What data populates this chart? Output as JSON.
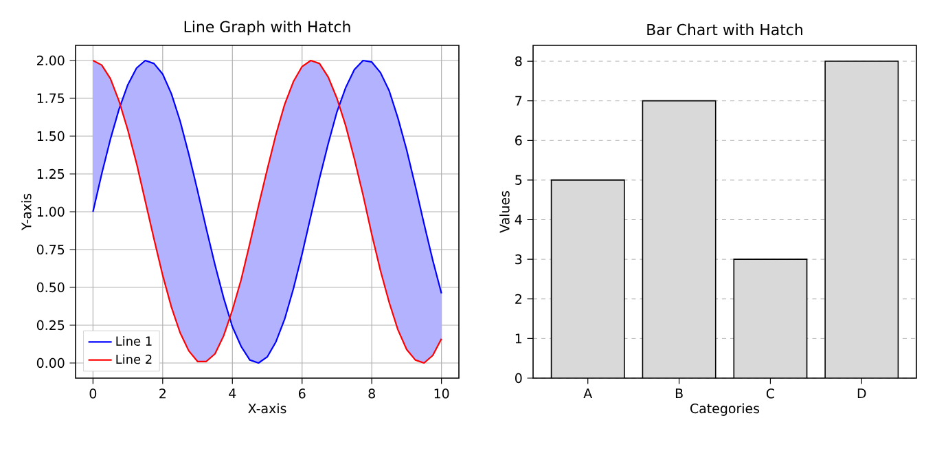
{
  "chart_data": [
    {
      "type": "line",
      "title": "Line Graph with Hatch",
      "xlabel": "X-axis",
      "ylabel": "Y-axis",
      "x": [
        0,
        0.25,
        0.5,
        0.75,
        1,
        1.25,
        1.5,
        1.75,
        2,
        2.25,
        2.5,
        2.75,
        3,
        3.25,
        3.5,
        3.75,
        4,
        4.25,
        4.5,
        4.75,
        5,
        5.25,
        5.5,
        5.75,
        6,
        6.25,
        6.5,
        6.75,
        7,
        7.25,
        7.5,
        7.75,
        8,
        8.25,
        8.5,
        8.75,
        9,
        9.25,
        9.5,
        9.75,
        10
      ],
      "series": [
        {
          "name": "Line 1",
          "color": "#0000ff",
          "values": [
            1.0,
            1.25,
            1.48,
            1.68,
            1.84,
            1.95,
            2.0,
            1.98,
            1.91,
            1.78,
            1.6,
            1.38,
            1.14,
            0.89,
            0.65,
            0.43,
            0.24,
            0.11,
            0.02,
            0.0,
            0.04,
            0.14,
            0.29,
            0.49,
            0.72,
            0.9701,
            1.22,
            1.45,
            1.66,
            1.82,
            1.94,
            2.0,
            1.99,
            1.92,
            1.8,
            1.62,
            1.41,
            1.17,
            0.92,
            0.68,
            0.46
          ],
          "lower": [
            2.0,
            1.97,
            1.88,
            1.73,
            1.54,
            1.32,
            1.07,
            0.82,
            0.58,
            0.37,
            0.2,
            0.08,
            0.01,
            0.01,
            0.06,
            0.18,
            0.35,
            0.55,
            0.79,
            1.04,
            1.28,
            1.51,
            1.71,
            1.86,
            1.96,
            2.0,
            1.98,
            1.89,
            1.75,
            1.57,
            1.35,
            1.11,
            0.85,
            0.61,
            0.4,
            0.22,
            0.09,
            0.02,
            0.0,
            0.05,
            0.16
          ],
          "upper": [
            1.0,
            1.25,
            1.48,
            1.68,
            1.84,
            1.95,
            2.0,
            1.98,
            1.91,
            1.78,
            1.6,
            1.38,
            1.14,
            0.89,
            0.65,
            0.43,
            0.24,
            0.11,
            0.02,
            0.0,
            0.04,
            0.14,
            0.29,
            0.49,
            0.72,
            0.9701,
            1.22,
            1.45,
            1.66,
            1.82,
            1.94,
            2.0,
            1.99,
            1.92,
            1.8,
            1.62,
            1.41,
            1.17,
            0.92,
            0.68,
            0.46
          ]
        },
        {
          "name": "Line 2",
          "color": "#ff0000",
          "values": [
            2.0,
            1.97,
            1.88,
            1.73,
            1.54,
            1.32,
            1.07,
            0.82,
            0.58,
            0.37,
            0.2,
            0.08,
            0.01,
            0.01,
            0.06,
            0.18,
            0.35,
            0.55,
            0.79,
            1.04,
            1.28,
            1.51,
            1.71,
            1.86,
            1.96,
            2.0,
            1.98,
            1.89,
            1.75,
            1.57,
            1.35,
            1.11,
            0.85,
            0.61,
            0.4,
            0.22,
            0.09,
            0.02,
            0.0,
            0.05,
            0.16
          ]
        }
      ],
      "xlim": [
        -0.5,
        10.5
      ],
      "ylim": [
        -0.1,
        2.1
      ],
      "xticks": [
        0,
        2,
        4,
        6,
        8,
        10
      ],
      "yticks": [
        {
          "value": 0,
          "label": "0.00"
        },
        {
          "value": 0.25,
          "label": "0.25"
        },
        {
          "value": 0.5,
          "label": "0.50"
        },
        {
          "value": 0.75,
          "label": "0.75"
        },
        {
          "value": 1,
          "label": "1.00"
        },
        {
          "value": 1.25,
          "label": "1.25"
        },
        {
          "value": 1.5,
          "label": "1.50"
        },
        {
          "value": 1.75,
          "label": "1.75"
        },
        {
          "value": 2,
          "label": "2.00"
        }
      ],
      "grid": true,
      "legend": "bottom left",
      "line_style": "solid",
      "marker": "none"
    },
    {
      "type": "bar",
      "title": "Bar Chart with Hatch",
      "xlabel": "Categories",
      "ylabel": "Values",
      "categories": [
        "A",
        "B",
        "C",
        "D"
      ],
      "values": [
        5,
        7,
        3,
        8
      ],
      "color": "#d9d9d9",
      "ylim": [
        0,
        8.4
      ],
      "yticks": [
        0,
        1,
        2,
        3,
        4,
        5,
        6,
        7,
        8
      ],
      "grid": "y"
    }
  ]
}
